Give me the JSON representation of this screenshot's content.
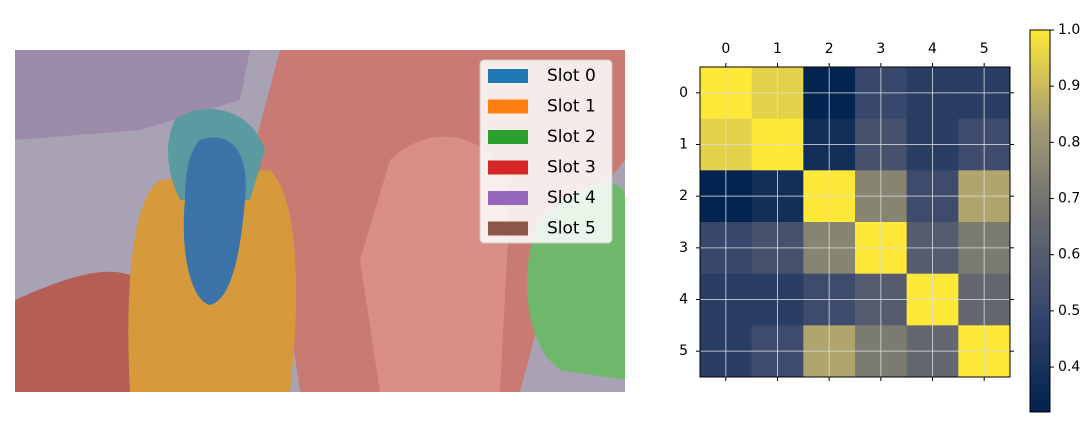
{
  "chart_data": [
    {
      "type": "segmentation",
      "legend": [
        {
          "name": "Slot 0",
          "color": "#1f77b4"
        },
        {
          "name": "Slot 1",
          "color": "#ff7f0e"
        },
        {
          "name": "Slot 2",
          "color": "#2ca02c"
        },
        {
          "name": "Slot 3",
          "color": "#d62728"
        },
        {
          "name": "Slot 4",
          "color": "#9467bd"
        },
        {
          "name": "Slot 5",
          "color": "#8c564b"
        }
      ]
    },
    {
      "type": "heatmap",
      "x_categories": [
        "0",
        "1",
        "2",
        "3",
        "4",
        "5"
      ],
      "y_categories": [
        "0",
        "1",
        "2",
        "3",
        "4",
        "5"
      ],
      "values": [
        [
          1.0,
          0.95,
          0.33,
          0.5,
          0.45,
          0.45
        ],
        [
          0.95,
          1.0,
          0.38,
          0.55,
          0.45,
          0.52
        ],
        [
          0.33,
          0.38,
          1.0,
          0.75,
          0.52,
          0.85
        ],
        [
          0.5,
          0.55,
          0.75,
          1.0,
          0.6,
          0.72
        ],
        [
          0.45,
          0.45,
          0.52,
          0.6,
          1.0,
          0.65
        ],
        [
          0.45,
          0.52,
          0.85,
          0.72,
          0.65,
          1.0
        ]
      ],
      "colormap": "cividis",
      "grid": true,
      "clim": [
        0.32,
        1.0
      ],
      "cticks": [
        0.4,
        0.5,
        0.6,
        0.7,
        0.8,
        0.9,
        {
          "value": 1.0,
          "label": "1.0"
        }
      ]
    }
  ]
}
